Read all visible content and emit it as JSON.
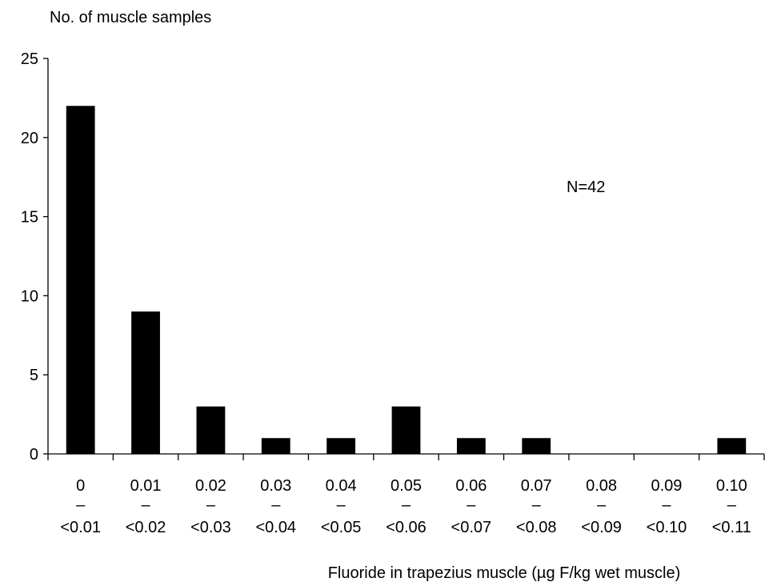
{
  "chart_data": {
    "type": "bar",
    "title": "",
    "ylabel": "No. of muscle samples",
    "xlabel": "Fluoride in trapezius muscle (µg F/kg wet muscle)",
    "ylim": [
      0,
      25
    ],
    "yticks": [
      0,
      5,
      10,
      15,
      20,
      25
    ],
    "categories": [
      {
        "low": "0",
        "dash": "–",
        "high": "<0.01"
      },
      {
        "low": "0.01",
        "dash": "–",
        "high": "<0.02"
      },
      {
        "low": "0.02",
        "dash": "–",
        "high": "<0.03"
      },
      {
        "low": "0.03",
        "dash": "–",
        "high": "<0.04"
      },
      {
        "low": "0.04",
        "dash": "–",
        "high": "<0.05"
      },
      {
        "low": "0.05",
        "dash": "–",
        "high": "<0.06"
      },
      {
        "low": "0.06",
        "dash": "–",
        "high": "<0.07"
      },
      {
        "low": "0.07",
        "dash": "–",
        "high": "<0.08"
      },
      {
        "low": "0.08",
        "dash": "–",
        "high": "<0.09"
      },
      {
        "low": "0.09",
        "dash": "–",
        "high": "<0.10"
      },
      {
        "low": "0.10",
        "dash": "–",
        "high": "<0.11"
      }
    ],
    "values": [
      22,
      9,
      3,
      1,
      1,
      3,
      1,
      1,
      0,
      0,
      1
    ],
    "annotation": "N=42",
    "grid": false,
    "legend": "none",
    "bar_color": "#000000"
  }
}
